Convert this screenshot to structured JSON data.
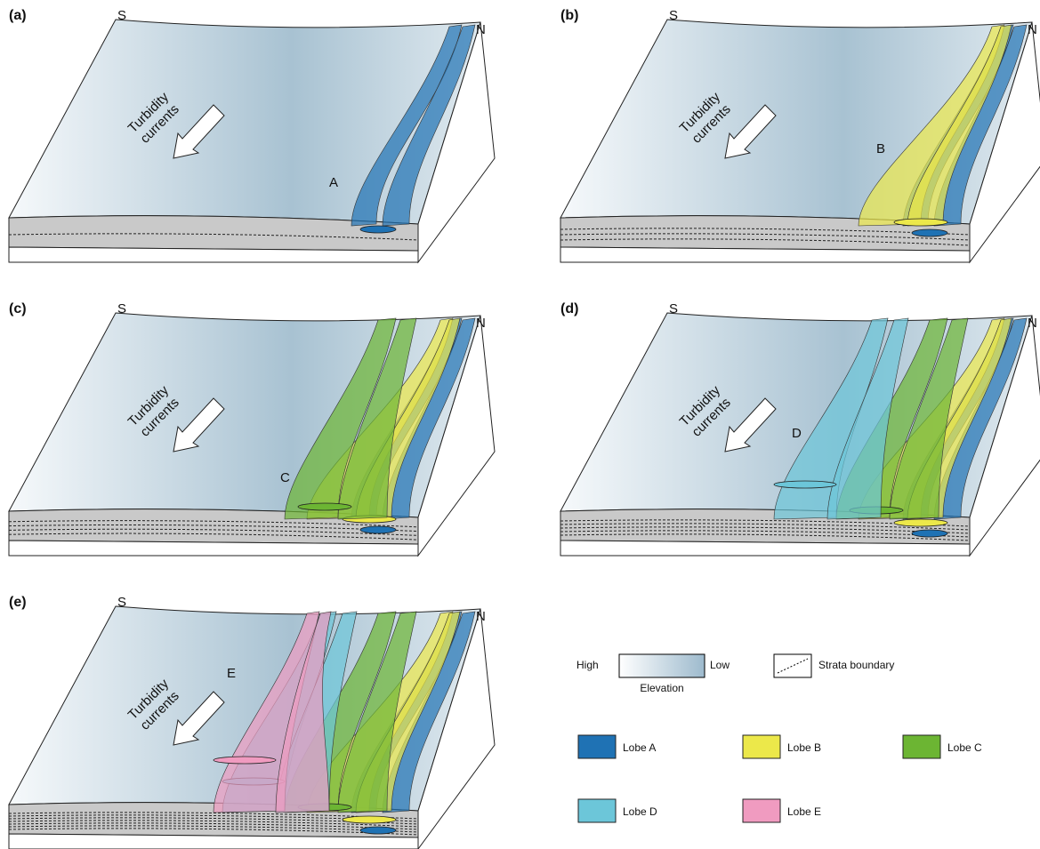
{
  "panels": [
    {
      "label": "(a)",
      "south": "S",
      "north": "N",
      "flow_text": [
        "Turbidity",
        "currents"
      ],
      "lobe_label": "A"
    },
    {
      "label": "(b)",
      "south": "S",
      "north": "N",
      "flow_text": [
        "Turbidity",
        "currents"
      ],
      "lobe_label": "B"
    },
    {
      "label": "(c)",
      "south": "S",
      "north": "N",
      "flow_text": [
        "Turbidity",
        "currents"
      ],
      "lobe_label": "C"
    },
    {
      "label": "(d)",
      "south": "S",
      "north": "N",
      "flow_text": [
        "Turbidity",
        "currents"
      ],
      "lobe_label": "D"
    },
    {
      "label": "(e)",
      "south": "S",
      "north": "N",
      "flow_text": [
        "Turbidity",
        "currents"
      ],
      "lobe_label": "E"
    }
  ],
  "legend": {
    "elevation": {
      "high": "High",
      "low": "Low",
      "title": "Elevation"
    },
    "strata": "Strata boundary",
    "lobes": [
      {
        "name": "Lobe A",
        "color": "#1f72b4"
      },
      {
        "name": "Lobe B",
        "color": "#ece84a"
      },
      {
        "name": "Lobe C",
        "color": "#6cb533"
      },
      {
        "name": "Lobe D",
        "color": "#6cc6d9"
      },
      {
        "name": "Lobe E",
        "color": "#f09bc0"
      }
    ]
  }
}
